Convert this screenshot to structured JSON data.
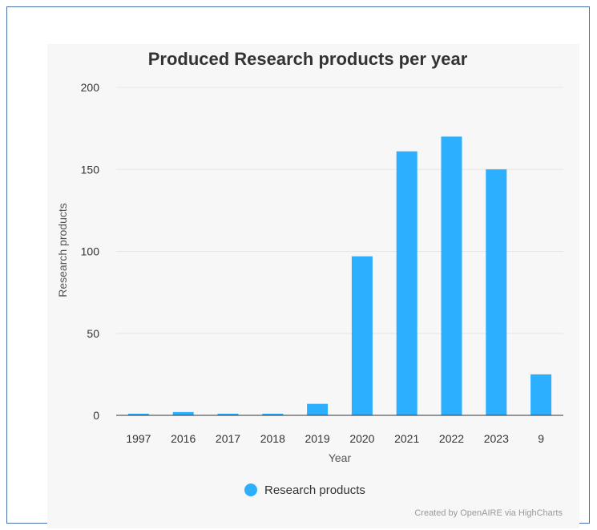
{
  "chart_data": {
    "type": "bar",
    "title": "Produced Research products per year",
    "xlabel": "Year",
    "ylabel": "Research products",
    "categories": [
      "1997",
      "2016",
      "2017",
      "2018",
      "2019",
      "2020",
      "2021",
      "2022",
      "2023",
      "9"
    ],
    "series": [
      {
        "name": "Research products",
        "values": [
          1,
          2,
          1,
          1,
          7,
          97,
          161,
          170,
          150,
          25
        ],
        "color": "#2caffe"
      }
    ],
    "ylim": [
      0,
      200
    ],
    "yticks": [
      0,
      50,
      100,
      150,
      200
    ],
    "grid": true,
    "legend_position": "bottom-center",
    "credits": "Created by OpenAIRE via HighCharts"
  }
}
